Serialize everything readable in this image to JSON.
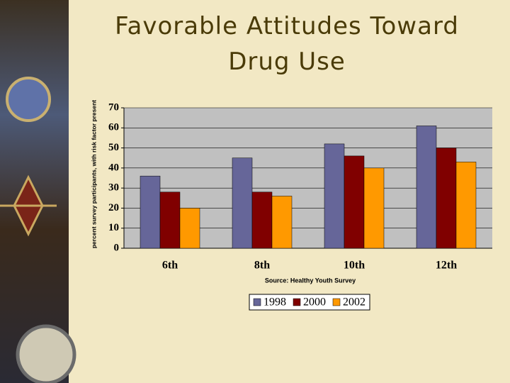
{
  "chart_data": {
    "type": "bar",
    "title": "Favorable Attitudes Toward Drug Use",
    "y_label": "percent survey participants, with risk factor present",
    "source": "Source: Healthy Youth Survey",
    "categories": [
      "6th",
      "8th",
      "10th",
      "12th"
    ],
    "series": [
      {
        "name": "1998",
        "color": "#666699",
        "values": [
          36,
          45,
          52,
          61
        ]
      },
      {
        "name": "2000",
        "color": "#800000",
        "values": [
          28,
          28,
          46,
          50
        ]
      },
      {
        "name": "2002",
        "color": "#ff9900",
        "values": [
          20,
          26,
          40,
          43
        ]
      }
    ],
    "ylim": [
      0,
      70
    ],
    "yticks": [
      0,
      10,
      20,
      30,
      40,
      50,
      60,
      70
    ],
    "grid": true
  }
}
